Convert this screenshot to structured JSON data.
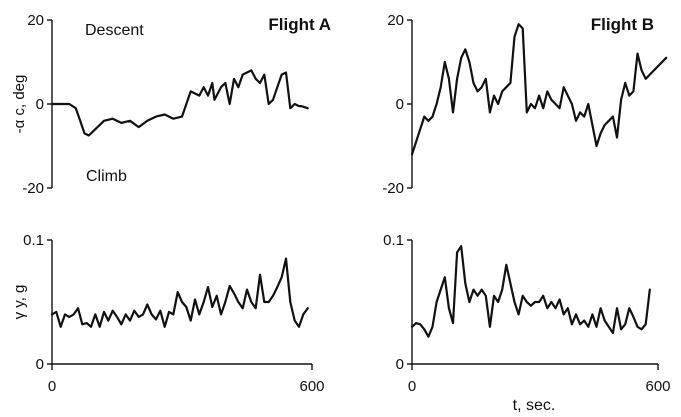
{
  "chart_data": [
    {
      "type": "line",
      "title": "Flight A",
      "ylabel": "-α c, deg",
      "xlim": [
        0,
        600
      ],
      "ylim": [
        -20,
        20
      ],
      "yticks": [
        "20",
        "0",
        "-20"
      ],
      "xticks": [],
      "annotations": [
        "Descent",
        "Climb"
      ],
      "grid": false,
      "x": [
        0,
        20,
        40,
        55,
        65,
        75,
        85,
        100,
        120,
        140,
        160,
        180,
        200,
        220,
        240,
        260,
        280,
        300,
        320,
        340,
        350,
        360,
        370,
        375,
        390,
        400,
        410,
        420,
        430,
        440,
        450,
        460,
        470,
        480,
        490,
        500,
        510,
        520,
        530,
        540,
        550,
        560,
        570,
        575,
        590
      ],
      "y": [
        0,
        0,
        0,
        -1,
        -4,
        -7,
        -7.5,
        -6,
        -4,
        -3.5,
        -4.5,
        -4,
        -5.5,
        -4,
        -3,
        -2.5,
        -3.5,
        -3,
        3,
        2,
        4,
        2,
        5,
        1,
        4,
        5,
        0,
        6,
        4,
        7,
        7.5,
        8,
        6,
        5,
        7,
        0,
        1,
        4,
        7,
        7.5,
        -1,
        0,
        -0.5,
        -0.5,
        -1
      ]
    },
    {
      "type": "line",
      "title": "Flight B",
      "ylabel": "",
      "xlim": [
        0,
        600
      ],
      "ylim": [
        -20,
        20
      ],
      "yticks": [
        "20",
        "0",
        "-20"
      ],
      "xticks": [],
      "grid": false,
      "x": [
        0,
        10,
        20,
        30,
        40,
        50,
        60,
        70,
        80,
        90,
        100,
        110,
        120,
        130,
        140,
        150,
        160,
        170,
        180,
        190,
        200,
        210,
        220,
        230,
        240,
        250,
        260,
        270,
        280,
        290,
        300,
        310,
        320,
        330,
        340,
        350,
        360,
        370,
        380,
        390,
        400,
        410,
        420,
        430,
        440,
        450,
        460,
        470,
        480,
        490,
        500,
        510,
        520,
        530,
        540,
        550,
        560,
        570,
        580,
        590,
        600,
        610,
        620
      ],
      "y": [
        -12,
        -9,
        -6,
        -3,
        -4,
        -3,
        0,
        4,
        10,
        6,
        -2,
        6,
        11,
        13,
        10,
        5,
        3,
        4,
        6,
        -2,
        2,
        0,
        3,
        4,
        5,
        16,
        19,
        18,
        -2,
        0,
        -1,
        2,
        -1,
        3,
        1,
        0,
        -1,
        4,
        2,
        0,
        -4,
        -2,
        -3,
        0,
        -5,
        -10,
        -7,
        -5,
        -4,
        -3,
        -8,
        1,
        5,
        2,
        3,
        12,
        8,
        6,
        7,
        8,
        9,
        10,
        11
      ]
    },
    {
      "type": "line",
      "title": "",
      "ylabel": "γ y, g",
      "xlabel": "",
      "xlim": [
        0,
        600
      ],
      "ylim": [
        0,
        0.1
      ],
      "yticks": [
        "0.1",
        "0"
      ],
      "xticks": [
        "0",
        "600"
      ],
      "grid": false,
      "x": [
        0,
        10,
        20,
        30,
        40,
        50,
        60,
        70,
        80,
        90,
        100,
        110,
        120,
        130,
        140,
        150,
        160,
        170,
        180,
        190,
        200,
        210,
        220,
        230,
        240,
        250,
        260,
        270,
        280,
        290,
        300,
        310,
        320,
        330,
        340,
        350,
        360,
        370,
        380,
        390,
        400,
        410,
        420,
        430,
        440,
        450,
        460,
        470,
        480,
        490,
        500,
        510,
        520,
        530,
        540,
        550,
        560,
        570,
        580,
        590
      ],
      "y": [
        0.04,
        0.042,
        0.03,
        0.04,
        0.038,
        0.04,
        0.045,
        0.032,
        0.033,
        0.03,
        0.04,
        0.03,
        0.042,
        0.035,
        0.043,
        0.038,
        0.032,
        0.04,
        0.035,
        0.043,
        0.038,
        0.04,
        0.048,
        0.04,
        0.036,
        0.043,
        0.03,
        0.042,
        0.04,
        0.058,
        0.05,
        0.046,
        0.035,
        0.052,
        0.04,
        0.05,
        0.062,
        0.046,
        0.055,
        0.04,
        0.05,
        0.063,
        0.057,
        0.05,
        0.045,
        0.06,
        0.05,
        0.045,
        0.072,
        0.05,
        0.05,
        0.055,
        0.062,
        0.07,
        0.085,
        0.05,
        0.035,
        0.03,
        0.04,
        0.045
      ]
    },
    {
      "type": "line",
      "title": "",
      "ylabel": "",
      "xlabel": "t, sec.",
      "xlim": [
        0,
        600
      ],
      "ylim": [
        0,
        0.1
      ],
      "yticks": [
        "0.1",
        "0"
      ],
      "xticks": [
        "0",
        "600"
      ],
      "grid": false,
      "x": [
        0,
        10,
        20,
        30,
        40,
        50,
        60,
        70,
        80,
        90,
        100,
        110,
        120,
        130,
        140,
        150,
        160,
        170,
        180,
        190,
        200,
        210,
        220,
        230,
        240,
        250,
        260,
        270,
        280,
        290,
        300,
        310,
        320,
        330,
        340,
        350,
        360,
        370,
        380,
        390,
        400,
        410,
        420,
        430,
        440,
        450,
        460,
        470,
        480,
        490,
        500,
        510,
        520,
        530,
        540,
        550,
        560,
        570,
        580
      ],
      "y": [
        0.03,
        0.033,
        0.032,
        0.028,
        0.022,
        0.03,
        0.05,
        0.06,
        0.07,
        0.045,
        0.033,
        0.09,
        0.095,
        0.065,
        0.05,
        0.06,
        0.055,
        0.06,
        0.055,
        0.03,
        0.055,
        0.05,
        0.06,
        0.08,
        0.065,
        0.05,
        0.04,
        0.055,
        0.05,
        0.047,
        0.05,
        0.05,
        0.055,
        0.045,
        0.05,
        0.045,
        0.052,
        0.04,
        0.045,
        0.032,
        0.04,
        0.032,
        0.035,
        0.03,
        0.04,
        0.03,
        0.045,
        0.035,
        0.03,
        0.025,
        0.045,
        0.028,
        0.032,
        0.045,
        0.038,
        0.03,
        0.028,
        0.032,
        0.06
      ]
    }
  ]
}
